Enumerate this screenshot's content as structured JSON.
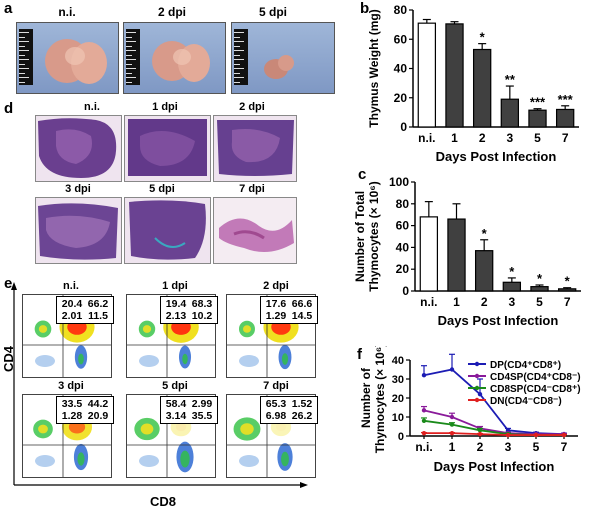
{
  "panels": {
    "a": "a",
    "b": "b",
    "c": "c",
    "d": "d",
    "e": "e",
    "f": "f"
  },
  "panel_a": {
    "labels": [
      "n.i.",
      "2 dpi",
      "5 dpi"
    ]
  },
  "panel_d": {
    "labels": [
      "n.i.",
      "1 dpi",
      "2 dpi",
      "3 dpi",
      "5 dpi",
      "7 dpi"
    ]
  },
  "panel_e": {
    "plots": [
      {
        "label": "n.i.",
        "q": [
          "20.4",
          "66.2",
          "2.01",
          "11.5"
        ]
      },
      {
        "label": "1 dpi",
        "q": [
          "19.4",
          "68.3",
          "2.13",
          "10.2"
        ]
      },
      {
        "label": "2 dpi",
        "q": [
          "17.6",
          "66.6",
          "1.29",
          "14.5"
        ]
      },
      {
        "label": "3 dpi",
        "q": [
          "33.5",
          "44.2",
          "1.28",
          "20.9"
        ]
      },
      {
        "label": "5 dpi",
        "q": [
          "58.4",
          "2.99",
          "3.14",
          "35.5"
        ]
      },
      {
        "label": "7 dpi",
        "q": [
          "65.3",
          "1.52",
          "6.98",
          "26.2"
        ]
      }
    ],
    "xaxis": "CD8",
    "yaxis": "CD4"
  },
  "chart_data": [
    {
      "id": "b",
      "type": "bar",
      "title": "",
      "xlabel": "Days Post Infection",
      "ylabel": "Thymus Weight (mg)",
      "categories": [
        "n.i.",
        "1",
        "2",
        "3",
        "5",
        "7"
      ],
      "values": [
        71,
        70.5,
        53,
        19,
        11.5,
        12
      ],
      "errors": [
        2.5,
        1.5,
        4,
        9,
        1,
        2.5
      ],
      "significance": [
        "",
        "",
        "*",
        "**",
        "***",
        "***"
      ],
      "ylim": [
        0,
        80
      ],
      "yticks": [
        0,
        20,
        40,
        60,
        80
      ]
    },
    {
      "id": "c",
      "type": "bar",
      "title": "",
      "xlabel": "Days Post Infection",
      "ylabel_line1": "Number of Total",
      "ylabel_line2": "Thymocytes (× 10⁶)",
      "categories": [
        "n.i.",
        "1",
        "2",
        "3",
        "5",
        "7"
      ],
      "values": [
        68,
        66,
        37,
        8,
        4,
        2
      ],
      "errors": [
        14,
        14,
        10,
        4,
        1.5,
        1
      ],
      "significance": [
        "",
        "",
        "*",
        "*",
        "*",
        "*"
      ],
      "ylim": [
        0,
        100
      ],
      "yticks": [
        0,
        20,
        40,
        60,
        80,
        100
      ]
    },
    {
      "id": "f",
      "type": "line",
      "title": "",
      "xlabel": "Days Post Infection",
      "ylabel_line1": "Number of",
      "ylabel_line2": "Thymocytes (× 10⁶)",
      "categories": [
        "n.i.",
        "1",
        "2",
        "3",
        "5",
        "7"
      ],
      "ylim": [
        0,
        40
      ],
      "yticks": [
        0,
        10,
        20,
        30,
        40
      ],
      "series": [
        {
          "name": "DP(CD4⁺CD8⁺)",
          "color": "#1c1cb4",
          "values": [
            32,
            35,
            22,
            3,
            1.5,
            1
          ],
          "errors": [
            5,
            8,
            8,
            1,
            0.5,
            0.5
          ]
        },
        {
          "name": "CD4SP(CD4⁺CD8⁻)",
          "color": "#8a1a9a",
          "values": [
            13.5,
            10,
            4,
            1.5,
            1,
            1
          ],
          "errors": [
            2,
            2,
            1,
            0.5,
            0.3,
            0.3
          ]
        },
        {
          "name": "CD8SP(CD4⁻CD8⁺)",
          "color": "#1a8a1a",
          "values": [
            8,
            6,
            3,
            1,
            0.5,
            0.5
          ],
          "errors": [
            1.5,
            1,
            1,
            0.5,
            0.2,
            0.2
          ]
        },
        {
          "name": "DN(CD4⁻CD8⁻)",
          "color": "#e02020",
          "values": [
            1.5,
            1.5,
            1,
            0.5,
            0.5,
            0.5
          ],
          "errors": [
            0.3,
            0.3,
            0.3,
            0.2,
            0.2,
            0.2
          ]
        }
      ]
    }
  ]
}
